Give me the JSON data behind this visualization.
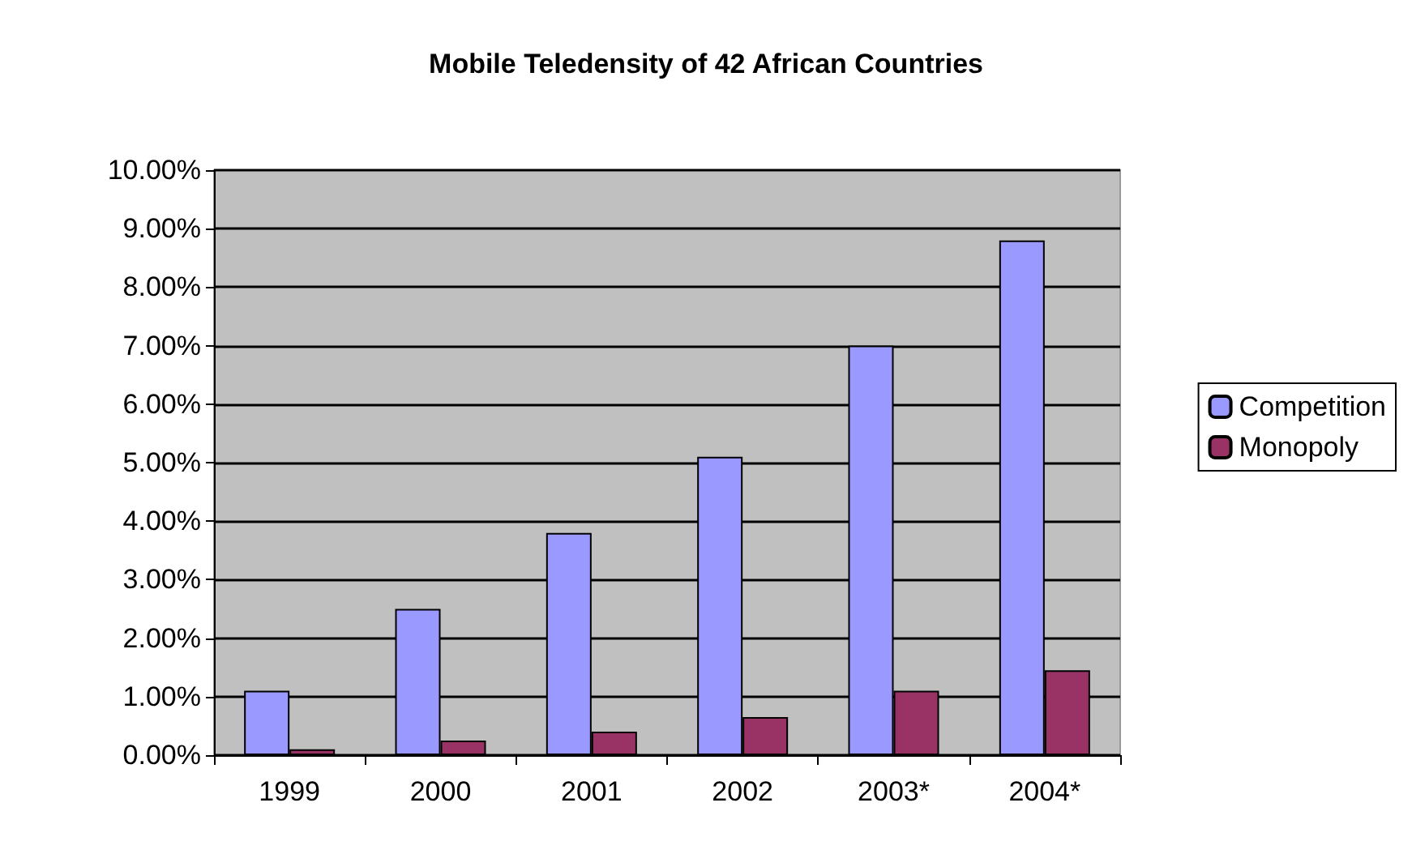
{
  "chart_data": {
    "type": "bar",
    "title": "Mobile Teledensity of 42 African Countries",
    "categories": [
      "1999",
      "2000",
      "2001",
      "2002",
      "2003*",
      "2004*"
    ],
    "series": [
      {
        "name": "Competition",
        "color": "#9999ff",
        "values": [
          1.1,
          2.5,
          3.8,
          5.1,
          7.0,
          8.8
        ]
      },
      {
        "name": "Monopoly",
        "color": "#993366",
        "values": [
          0.1,
          0.25,
          0.4,
          0.65,
          1.1,
          1.45
        ]
      }
    ],
    "ylim": [
      0,
      10
    ],
    "yticks": [
      {
        "value": 0,
        "label": "0.00%"
      },
      {
        "value": 1,
        "label": "1.00%"
      },
      {
        "value": 2,
        "label": "2.00%"
      },
      {
        "value": 3,
        "label": "3.00%"
      },
      {
        "value": 4,
        "label": "4.00%"
      },
      {
        "value": 5,
        "label": "5.00%"
      },
      {
        "value": 6,
        "label": "6.00%"
      },
      {
        "value": 7,
        "label": "7.00%"
      },
      {
        "value": 8,
        "label": "8.00%"
      },
      {
        "value": 9,
        "label": "9.00%"
      },
      {
        "value": 10,
        "label": "10.00%"
      }
    ],
    "grid": "y",
    "legend": "right"
  }
}
